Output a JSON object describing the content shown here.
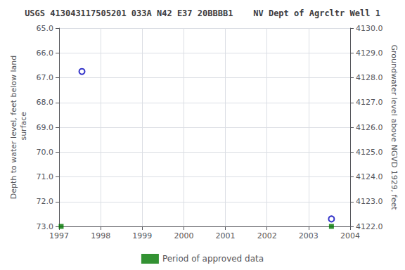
{
  "chart_data": {
    "type": "scatter",
    "title": "USGS 413043117505201 033A N42 E37 20BBBB1    NV Dept of Agrcltr Well 1",
    "ylabel": "Depth to water level, feet below land\n surface",
    "y2label": "Groundwater level above NGVD 1929, feet",
    "series": [
      {
        "x": [
          1997.55,
          2003.55
        ],
        "values": [
          66.75,
          72.7
        ],
        "color": "#0000bb",
        "marker": "circle"
      },
      {
        "name": "Period of approved data",
        "x": [
          1997.05,
          2003.55
        ],
        "values": [
          73.0,
          73.0
        ],
        "color": "#007700",
        "marker": "square"
      }
    ],
    "xlim": [
      1997.0,
      2004.0
    ],
    "xticks": [
      1997,
      1998,
      1999,
      2000,
      2001,
      2002,
      2003,
      2004
    ],
    "ylim": [
      73.0,
      65.0
    ],
    "yticks": [
      {
        "value": 65.0,
        "label": "65.0"
      },
      {
        "value": 66.0,
        "label": "66.0"
      },
      {
        "value": 67.0,
        "label": "67.0"
      },
      {
        "value": 68.0,
        "label": "68.0"
      },
      {
        "value": 69.0,
        "label": "69.0"
      },
      {
        "value": 70.0,
        "label": "70.0"
      },
      {
        "value": 71.0,
        "label": "71.0"
      },
      {
        "value": 72.0,
        "label": "72.0"
      },
      {
        "value": 73.0,
        "label": "73.0"
      }
    ],
    "y2lim": [
      4122.0,
      4130.0
    ],
    "y2ticks": [
      {
        "value": 4122.0,
        "label": "4122.0"
      },
      {
        "value": 4123.0,
        "label": "4123.0"
      },
      {
        "value": 4124.0,
        "label": "4124.0"
      },
      {
        "value": 4125.0,
        "label": "4125.0"
      },
      {
        "value": 4126.0,
        "label": "4126.0"
      },
      {
        "value": 4127.0,
        "label": "4127.0"
      },
      {
        "value": 4128.0,
        "label": "4128.0"
      },
      {
        "value": 4129.0,
        "label": "4129.0"
      },
      {
        "value": 4130.0,
        "label": "4130.0"
      }
    ],
    "grid": true,
    "legend": "bottom"
  }
}
